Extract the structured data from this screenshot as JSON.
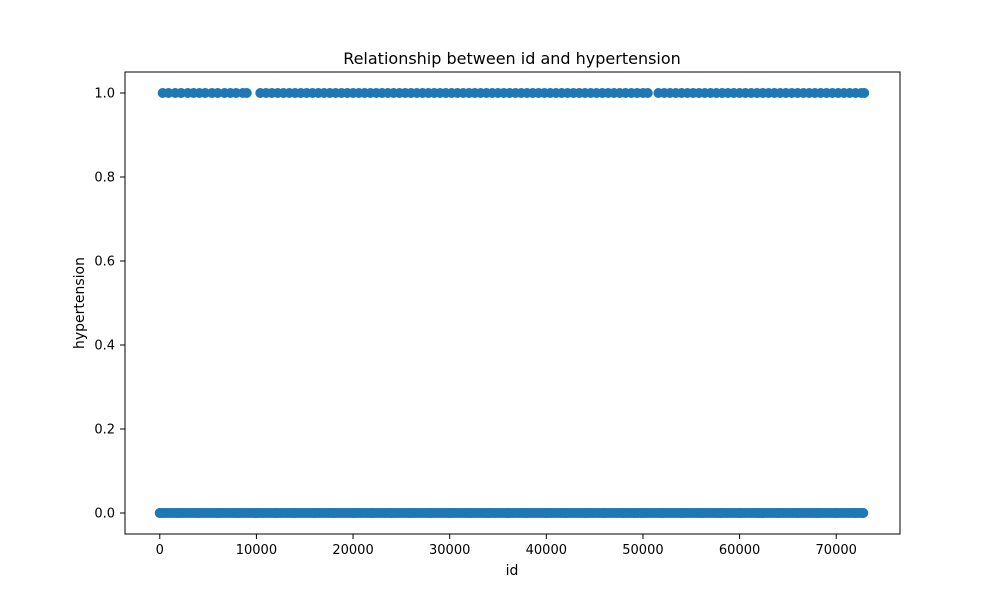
{
  "chart_data": {
    "type": "scatter",
    "title": "Relationship between id and hypertension",
    "xlabel": "id",
    "ylabel": "hypertension",
    "xlim": [
      -3600,
      76600
    ],
    "ylim": [
      -0.05,
      1.05
    ],
    "x_ticks": [
      0,
      10000,
      20000,
      30000,
      40000,
      50000,
      60000,
      70000
    ],
    "y_ticks": [
      0.0,
      0.2,
      0.4,
      0.6,
      0.8,
      1.0
    ],
    "x_tick_labels": [
      "0",
      "10000",
      "20000",
      "30000",
      "40000",
      "50000",
      "60000",
      "70000"
    ],
    "y_tick_labels": [
      "0.0",
      "0.2",
      "0.4",
      "0.6",
      "0.8",
      "1.0"
    ],
    "grid": false,
    "legend": "none",
    "series": [
      {
        "marker_color": "#1f77b4",
        "points": [
          [
            0,
            0
          ],
          [
            2000,
            0
          ],
          [
            4000,
            0
          ],
          [
            6000,
            0
          ],
          [
            8000,
            0
          ],
          [
            10000,
            0
          ],
          [
            12000,
            0
          ],
          [
            14000,
            0
          ],
          [
            16000,
            0
          ],
          [
            18000,
            0
          ],
          [
            20000,
            0
          ],
          [
            22000,
            0
          ],
          [
            24000,
            0
          ],
          [
            26000,
            0
          ],
          [
            28000,
            0
          ],
          [
            30000,
            0
          ],
          [
            32000,
            0
          ],
          [
            34000,
            0
          ],
          [
            36000,
            0
          ],
          [
            38000,
            0
          ],
          [
            40000,
            0
          ],
          [
            42000,
            0
          ],
          [
            44000,
            0
          ],
          [
            46000,
            0
          ],
          [
            48000,
            0
          ],
          [
            50000,
            0
          ],
          [
            52000,
            0
          ],
          [
            54000,
            0
          ],
          [
            56000,
            0
          ],
          [
            58000,
            0
          ],
          [
            60000,
            0
          ],
          [
            62000,
            0
          ],
          [
            64000,
            0
          ],
          [
            66000,
            0
          ],
          [
            68000,
            0
          ],
          [
            70000,
            0
          ],
          [
            72000,
            0
          ],
          [
            72800,
            0
          ],
          [
            300,
            1
          ],
          [
            900,
            1
          ],
          [
            1600,
            1
          ],
          [
            2200,
            1
          ],
          [
            2900,
            1
          ],
          [
            3500,
            1
          ],
          [
            4100,
            1
          ],
          [
            4700,
            1
          ],
          [
            5400,
            1
          ],
          [
            6000,
            1
          ],
          [
            6700,
            1
          ],
          [
            7300,
            1
          ],
          [
            7900,
            1
          ],
          [
            8600,
            1
          ],
          [
            9000,
            1
          ],
          [
            10400,
            1
          ],
          [
            11000,
            1
          ],
          [
            11600,
            1
          ],
          [
            12200,
            1
          ],
          [
            12800,
            1
          ],
          [
            13400,
            1
          ],
          [
            14000,
            1
          ],
          [
            14600,
            1
          ],
          [
            15200,
            1
          ],
          [
            15800,
            1
          ],
          [
            16400,
            1
          ],
          [
            17000,
            1
          ],
          [
            17600,
            1
          ],
          [
            18200,
            1
          ],
          [
            18800,
            1
          ],
          [
            19400,
            1
          ],
          [
            20000,
            1
          ],
          [
            20600,
            1
          ],
          [
            21200,
            1
          ],
          [
            21800,
            1
          ],
          [
            22400,
            1
          ],
          [
            23000,
            1
          ],
          [
            23600,
            1
          ],
          [
            24200,
            1
          ],
          [
            24800,
            1
          ],
          [
            25400,
            1
          ],
          [
            26000,
            1
          ],
          [
            26600,
            1
          ],
          [
            27200,
            1
          ],
          [
            27800,
            1
          ],
          [
            28400,
            1
          ],
          [
            29000,
            1
          ],
          [
            29600,
            1
          ],
          [
            30200,
            1
          ],
          [
            30800,
            1
          ],
          [
            31400,
            1
          ],
          [
            32000,
            1
          ],
          [
            32600,
            1
          ],
          [
            33200,
            1
          ],
          [
            33800,
            1
          ],
          [
            34400,
            1
          ],
          [
            35000,
            1
          ],
          [
            35600,
            1
          ],
          [
            36200,
            1
          ],
          [
            36800,
            1
          ],
          [
            37400,
            1
          ],
          [
            38000,
            1
          ],
          [
            38600,
            1
          ],
          [
            39200,
            1
          ],
          [
            39800,
            1
          ],
          [
            40400,
            1
          ],
          [
            41000,
            1
          ],
          [
            41600,
            1
          ],
          [
            42200,
            1
          ],
          [
            42800,
            1
          ],
          [
            43400,
            1
          ],
          [
            44000,
            1
          ],
          [
            44600,
            1
          ],
          [
            45200,
            1
          ],
          [
            45800,
            1
          ],
          [
            46400,
            1
          ],
          [
            47000,
            1
          ],
          [
            47600,
            1
          ],
          [
            48200,
            1
          ],
          [
            48800,
            1
          ],
          [
            49400,
            1
          ],
          [
            50000,
            1
          ],
          [
            50500,
            1
          ],
          [
            51600,
            1
          ],
          [
            52200,
            1
          ],
          [
            52800,
            1
          ],
          [
            53400,
            1
          ],
          [
            54000,
            1
          ],
          [
            54600,
            1
          ],
          [
            55200,
            1
          ],
          [
            55800,
            1
          ],
          [
            56400,
            1
          ],
          [
            57000,
            1
          ],
          [
            57600,
            1
          ],
          [
            58200,
            1
          ],
          [
            58800,
            1
          ],
          [
            59400,
            1
          ],
          [
            60000,
            1
          ],
          [
            60600,
            1
          ],
          [
            61200,
            1
          ],
          [
            61800,
            1
          ],
          [
            62400,
            1
          ],
          [
            63000,
            1
          ],
          [
            63600,
            1
          ],
          [
            64200,
            1
          ],
          [
            64800,
            1
          ],
          [
            65400,
            1
          ],
          [
            66000,
            1
          ],
          [
            66600,
            1
          ],
          [
            67200,
            1
          ],
          [
            67800,
            1
          ],
          [
            68400,
            1
          ],
          [
            69000,
            1
          ],
          [
            69600,
            1
          ],
          [
            70200,
            1
          ],
          [
            70800,
            1
          ],
          [
            71400,
            1
          ],
          [
            72000,
            1
          ],
          [
            72600,
            1
          ],
          [
            72900,
            1
          ]
        ]
      }
    ]
  }
}
